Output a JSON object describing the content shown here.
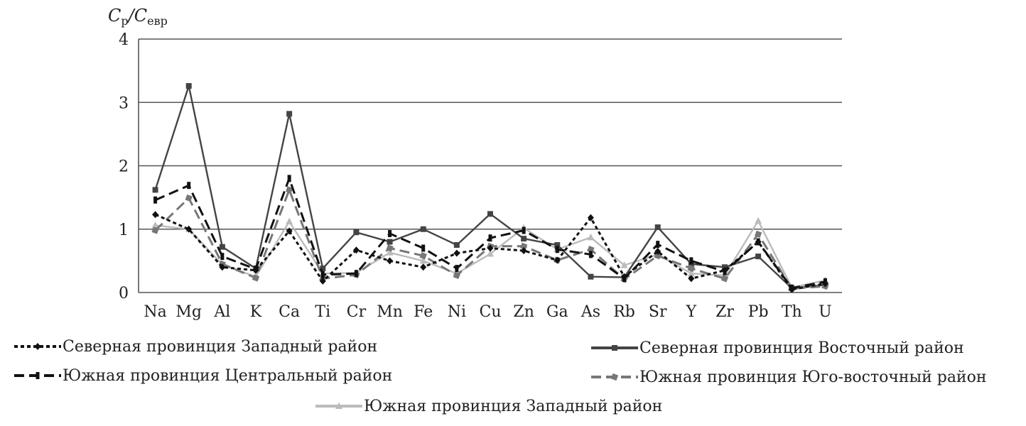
{
  "chart_data": {
    "type": "line",
    "ylabel": {
      "symbol1": "C",
      "sub1": "р",
      "sep": "/",
      "symbol2": "C",
      "sub2": "евр"
    },
    "ylim": [
      0,
      4
    ],
    "yticks": [
      "0",
      "1",
      "2",
      "3",
      "4"
    ],
    "grid": true,
    "legend_position": "bottom",
    "categories": [
      "Na",
      "Mg",
      "Al",
      "K",
      "Ca",
      "Ti",
      "Cr",
      "Mn",
      "Fe",
      "Ni",
      "Cu",
      "Zn",
      "Ga",
      "As",
      "Rb",
      "Sr",
      "Y",
      "Zr",
      "Pb",
      "Th",
      "U"
    ],
    "series": [
      {
        "name": "Северная провинция Западный район",
        "color": "#111111",
        "line": "dotted",
        "marker": "diamond",
        "values": [
          1.23,
          1.0,
          0.4,
          0.35,
          0.97,
          0.18,
          0.67,
          0.5,
          0.4,
          0.62,
          0.7,
          0.66,
          0.51,
          1.18,
          0.25,
          0.65,
          0.22,
          0.35,
          0.8,
          0.05,
          0.14
        ]
      },
      {
        "name": "Северная провинция Восточный район",
        "color": "#444444",
        "line": "solid",
        "marker": "square",
        "values": [
          1.62,
          3.26,
          0.72,
          0.38,
          2.82,
          0.38,
          0.95,
          0.8,
          1.0,
          0.75,
          1.24,
          0.85,
          0.75,
          0.25,
          0.24,
          1.03,
          0.45,
          0.4,
          0.57,
          0.07,
          0.12
        ]
      },
      {
        "name": "Южная провинция Центральный район",
        "color": "#111111",
        "line": "dashed",
        "marker": "dash",
        "values": [
          1.46,
          1.69,
          0.57,
          0.37,
          1.8,
          0.28,
          0.3,
          0.93,
          0.7,
          0.38,
          0.86,
          0.98,
          0.68,
          0.6,
          0.22,
          0.76,
          0.5,
          0.33,
          0.8,
          0.07,
          0.17
        ]
      },
      {
        "name": "Южная провинция Юго-восточный район",
        "color": "#777777",
        "line": "dashed",
        "marker": "circle",
        "values": [
          0.98,
          1.49,
          0.45,
          0.23,
          1.62,
          0.22,
          0.28,
          0.7,
          0.58,
          0.27,
          0.73,
          0.73,
          0.51,
          0.68,
          0.21,
          0.58,
          0.38,
          0.22,
          0.92,
          0.06,
          0.1
        ]
      },
      {
        "name": "Южная провинция Западный район",
        "color": "#bbbbbb",
        "line": "solid",
        "marker": "triangle",
        "values": [
          1.06,
          1.0,
          0.44,
          0.25,
          1.12,
          0.3,
          0.31,
          0.63,
          0.5,
          0.3,
          0.61,
          1.02,
          0.68,
          0.87,
          0.43,
          0.6,
          0.3,
          0.27,
          1.13,
          0.08,
          0.19
        ]
      }
    ]
  }
}
